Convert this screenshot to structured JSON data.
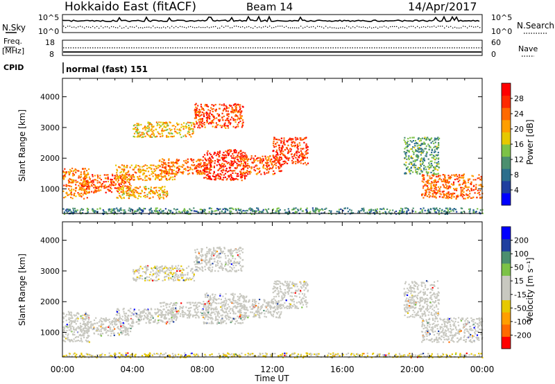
{
  "header": {
    "station": "Hokkaido East (fitACF)",
    "beam": "Beam 14",
    "date": "14/Apr/2017"
  },
  "noise_panel": {
    "left_label": "N.Sky",
    "right_label": "N.Search",
    "left_ticks": [
      "10^5",
      "10^0"
    ],
    "right_ticks": [
      "10^5",
      "10^0"
    ]
  },
  "freq_panel": {
    "left_label_1": "Freq.",
    "left_label_2": "[MHz]",
    "right_label": "Nave",
    "left_ticks": [
      "18",
      "8"
    ],
    "right_ticks": [
      "60",
      "0"
    ]
  },
  "cpid_panel": {
    "label": "CPID",
    "value": "normal (fast) 151"
  },
  "colors": {
    "power_scale": [
      "#0000ff",
      "#1f3f9f",
      "#2c6e8c",
      "#4b8f6f",
      "#7cc247",
      "#e6c800",
      "#ff9e00",
      "#ff6a00",
      "#ff2a00",
      "#ff0000"
    ],
    "velocity_scale": [
      "#ff0000",
      "#ff6a00",
      "#ff9e00",
      "#e6c800",
      "#c8c8c0",
      "#c8c8c0",
      "#7cc247",
      "#4b8f6f",
      "#1f3f9f",
      "#0000ff"
    ]
  },
  "chart_data": [
    {
      "type": "heatmap",
      "name": "power",
      "ylabel": "Slant Range [km]",
      "ytick_labels": [
        "1000",
        "2000",
        "3000",
        "4000"
      ],
      "ylim": [
        200,
        4600
      ],
      "xlim": [
        0,
        24
      ],
      "colorbar_label": "Power [dB]",
      "colorbar_ticks": [
        "4",
        "8",
        "12",
        "16",
        "20",
        "24",
        "28"
      ],
      "colorbar_range": [
        0,
        32
      ],
      "bands": [
        {
          "x0": 0.0,
          "x1": 1.5,
          "r0": 700,
          "r1": 1700,
          "v": 23
        },
        {
          "x0": 1.0,
          "x1": 4.0,
          "r0": 900,
          "r1": 1500,
          "v": 25
        },
        {
          "x0": 3.0,
          "x1": 6.5,
          "r0": 1300,
          "r1": 1800,
          "v": 21
        },
        {
          "x0": 5.5,
          "x1": 8.5,
          "r0": 1500,
          "r1": 2000,
          "v": 24
        },
        {
          "x0": 8.0,
          "x1": 10.5,
          "r0": 1300,
          "r1": 2300,
          "v": 28
        },
        {
          "x0": 10.0,
          "x1": 12.5,
          "r0": 1500,
          "r1": 2100,
          "v": 25
        },
        {
          "x0": 12.0,
          "x1": 14.0,
          "r0": 1800,
          "r1": 2700,
          "v": 27
        },
        {
          "x0": 7.5,
          "x1": 10.3,
          "r0": 3000,
          "r1": 3800,
          "v": 26
        },
        {
          "x0": 4.0,
          "x1": 7.5,
          "r0": 2700,
          "r1": 3200,
          "v": 19
        },
        {
          "x0": 3.0,
          "x1": 6.0,
          "r0": 700,
          "r1": 1100,
          "v": 20
        },
        {
          "x0": 20.5,
          "x1": 24.0,
          "r0": 700,
          "r1": 1500,
          "v": 24
        },
        {
          "x0": 19.5,
          "x1": 21.5,
          "r0": 1500,
          "r1": 2700,
          "v": 12
        },
        {
          "x0": 0.0,
          "x1": 24.0,
          "r0": 200,
          "r1": 400,
          "v": 10
        }
      ]
    },
    {
      "type": "heatmap",
      "name": "velocity",
      "ylabel": "Slant Range [km]",
      "ytick_labels": [
        "1000",
        "2000",
        "3000",
        "4000"
      ],
      "ylim": [
        200,
        4600
      ],
      "xlim": [
        0,
        24
      ],
      "xtick_labels": [
        "00:00",
        "04:00",
        "08:00",
        "12:00",
        "16:00",
        "20:00",
        "00:00"
      ],
      "xlabel": "Time UT",
      "colorbar_label": "Velocity [m s⁻¹]",
      "colorbar_ticks": [
        "-200",
        "-100",
        "-50",
        "-15",
        "15",
        "50",
        "100",
        "200"
      ],
      "colorbar_range": [
        -250,
        250
      ],
      "bands": [
        {
          "x0": 0.0,
          "x1": 1.5,
          "r0": 700,
          "r1": 1700,
          "v": 0
        },
        {
          "x0": 1.0,
          "x1": 4.0,
          "r0": 900,
          "r1": 1500,
          "v": 0
        },
        {
          "x0": 3.0,
          "x1": 6.5,
          "r0": 1300,
          "r1": 1800,
          "v": 0
        },
        {
          "x0": 5.5,
          "x1": 8.5,
          "r0": 1500,
          "r1": 2000,
          "v": 0
        },
        {
          "x0": 8.0,
          "x1": 10.5,
          "r0": 1300,
          "r1": 2300,
          "v": 0
        },
        {
          "x0": 10.0,
          "x1": 12.5,
          "r0": 1500,
          "r1": 2100,
          "v": 0
        },
        {
          "x0": 12.0,
          "x1": 14.0,
          "r0": 1800,
          "r1": 2700,
          "v": 0
        },
        {
          "x0": 7.5,
          "x1": 10.3,
          "r0": 3000,
          "r1": 3800,
          "v": -30
        },
        {
          "x0": 4.0,
          "x1": 7.5,
          "r0": 2700,
          "r1": 3200,
          "v": -40
        },
        {
          "x0": 20.5,
          "x1": 24.0,
          "r0": 700,
          "r1": 1500,
          "v": 0
        },
        {
          "x0": 19.5,
          "x1": 21.5,
          "r0": 1500,
          "r1": 2700,
          "v": 0
        },
        {
          "x0": 0.0,
          "x1": 24.0,
          "r0": 200,
          "r1": 350,
          "v": -50
        }
      ]
    }
  ]
}
